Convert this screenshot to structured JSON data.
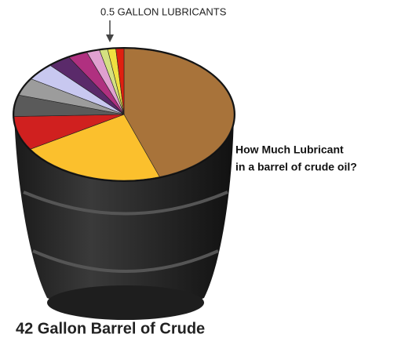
{
  "chart_data": {
    "type": "pie",
    "title": "42 Gallon Barrel of Crude",
    "annotation": "0.5 GALLON LUBRICANTS",
    "question": [
      "How Much Lubricant",
      "in a barrel of crude oil?"
    ],
    "values": [
      18.8,
      9,
      3.5,
      2.2,
      1.8,
      1.8,
      1.4,
      1.2,
      0.8,
      0.5,
      0.5,
      0.5
    ],
    "colors": [
      "#a8733a",
      "#fbc02d",
      "#d0201f",
      "#5a5a5a",
      "#9c9c9c",
      "#c8c8f0",
      "#5a2a6a",
      "#b03080",
      "#e0a0d0",
      "#d4e080",
      "#f0e040",
      "#e02010"
    ]
  }
}
